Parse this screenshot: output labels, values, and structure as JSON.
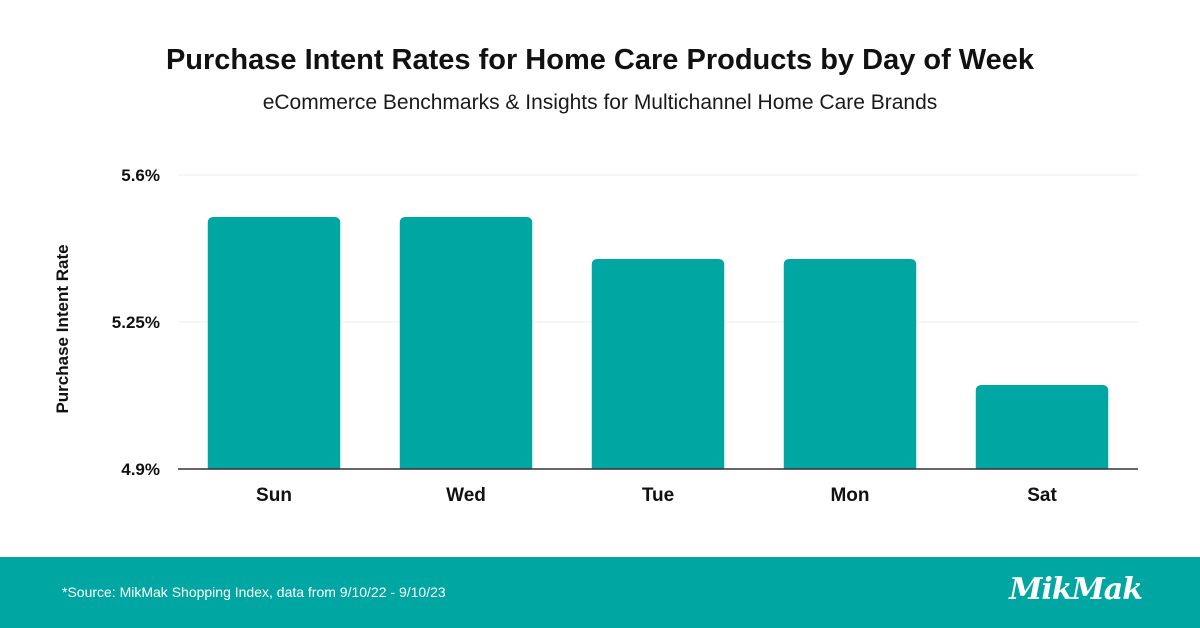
{
  "colors": {
    "bar": "#00a6a1",
    "footer": "#00a6a1",
    "axis": "#333333",
    "grid": "#eeeeee"
  },
  "chart_data": {
    "type": "bar",
    "title": "Purchase Intent Rates for Home Care Products by Day of Week",
    "subtitle": "eCommerce Benchmarks & Insights for Multichannel Home Care Brands",
    "xlabel": "",
    "ylabel": "Purchase Intent Rate",
    "categories": [
      "Sun",
      "Wed",
      "Tue",
      "Mon",
      "Sat"
    ],
    "values": [
      5.5,
      5.5,
      5.4,
      5.4,
      5.1
    ],
    "ylim": [
      4.9,
      5.6
    ],
    "y_ticks": [
      4.9,
      5.25,
      5.6
    ],
    "y_tick_labels": [
      "4.9%",
      "5.25%",
      "5.6%"
    ],
    "grid": true,
    "legend": "none"
  },
  "footer": {
    "source": "*Source: MikMak Shopping Index, data from 9/10/22 - 9/10/23",
    "logo_text": "MikMak"
  }
}
